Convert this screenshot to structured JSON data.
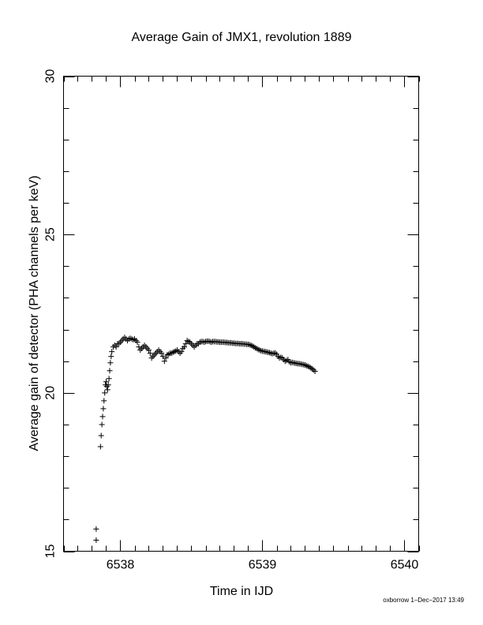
{
  "footer_note": "oxborrow 1–Dec–2017 13:49",
  "chart_data": {
    "type": "scatter",
    "title": "Average Gain of JMX1, revolution 1889",
    "xlabel": "Time in IJD",
    "ylabel": "Average gain of detector (PHA channels per keV)",
    "xlim": [
      6537.6,
      6540.1
    ],
    "ylim": [
      15,
      30
    ],
    "xticks": [
      6538,
      6539,
      6540
    ],
    "yticks": [
      15,
      20,
      25,
      30
    ],
    "x_minor_step": 0.1,
    "y_minor_step": 1,
    "grid": false,
    "marker": "+",
    "series": [
      {
        "points": [
          [
            6537.83,
            15.35
          ],
          [
            6537.83,
            15.7
          ],
          [
            6537.86,
            18.3
          ],
          [
            6537.865,
            18.65
          ],
          [
            6537.87,
            19.0
          ],
          [
            6537.875,
            19.25
          ],
          [
            6537.88,
            19.5
          ],
          [
            6537.885,
            19.75
          ],
          [
            6537.89,
            20.0
          ],
          [
            6537.895,
            20.25
          ],
          [
            6537.9,
            20.35
          ],
          [
            6537.905,
            20.2
          ],
          [
            6537.91,
            20.1
          ],
          [
            6537.915,
            20.25
          ],
          [
            6537.92,
            20.45
          ],
          [
            6537.925,
            20.7
          ],
          [
            6537.93,
            20.95
          ],
          [
            6537.935,
            21.15
          ],
          [
            6537.94,
            21.3
          ],
          [
            6537.95,
            21.45
          ],
          [
            6537.96,
            21.5
          ],
          [
            6537.97,
            21.45
          ],
          [
            6537.98,
            21.55
          ],
          [
            6537.99,
            21.55
          ],
          [
            6538.0,
            21.6
          ],
          [
            6538.01,
            21.65
          ],
          [
            6538.02,
            21.7
          ],
          [
            6538.03,
            21.75
          ],
          [
            6538.04,
            21.7
          ],
          [
            6538.05,
            21.65
          ],
          [
            6538.06,
            21.7
          ],
          [
            6538.07,
            21.72
          ],
          [
            6538.08,
            21.7
          ],
          [
            6538.09,
            21.68
          ],
          [
            6538.1,
            21.7
          ],
          [
            6538.11,
            21.65
          ],
          [
            6538.12,
            21.6
          ],
          [
            6538.13,
            21.45
          ],
          [
            6538.14,
            21.35
          ],
          [
            6538.15,
            21.4
          ],
          [
            6538.16,
            21.45
          ],
          [
            6538.17,
            21.5
          ],
          [
            6538.18,
            21.45
          ],
          [
            6538.19,
            21.4
          ],
          [
            6538.2,
            21.35
          ],
          [
            6538.21,
            21.25
          ],
          [
            6538.22,
            21.1
          ],
          [
            6538.23,
            21.15
          ],
          [
            6538.24,
            21.2
          ],
          [
            6538.25,
            21.25
          ],
          [
            6538.26,
            21.3
          ],
          [
            6538.27,
            21.35
          ],
          [
            6538.28,
            21.3
          ],
          [
            6538.29,
            21.25
          ],
          [
            6538.3,
            21.15
          ],
          [
            6538.31,
            21.0
          ],
          [
            6538.32,
            21.1
          ],
          [
            6538.33,
            21.2
          ],
          [
            6538.34,
            21.22
          ],
          [
            6538.35,
            21.25
          ],
          [
            6538.36,
            21.25
          ],
          [
            6538.37,
            21.28
          ],
          [
            6538.38,
            21.3
          ],
          [
            6538.39,
            21.32
          ],
          [
            6538.4,
            21.35
          ],
          [
            6538.41,
            21.3
          ],
          [
            6538.42,
            21.25
          ],
          [
            6538.43,
            21.3
          ],
          [
            6538.44,
            21.4
          ],
          [
            6538.45,
            21.45
          ],
          [
            6538.46,
            21.55
          ],
          [
            6538.47,
            21.65
          ],
          [
            6538.48,
            21.62
          ],
          [
            6538.49,
            21.6
          ],
          [
            6538.5,
            21.55
          ],
          [
            6538.51,
            21.5
          ],
          [
            6538.52,
            21.45
          ],
          [
            6538.53,
            21.5
          ],
          [
            6538.54,
            21.55
          ],
          [
            6538.55,
            21.55
          ],
          [
            6538.56,
            21.6
          ],
          [
            6538.57,
            21.62
          ],
          [
            6538.58,
            21.62
          ],
          [
            6538.59,
            21.6
          ],
          [
            6538.6,
            21.62
          ],
          [
            6538.61,
            21.63
          ],
          [
            6538.62,
            21.63
          ],
          [
            6538.63,
            21.62
          ],
          [
            6538.64,
            21.6
          ],
          [
            6538.65,
            21.62
          ],
          [
            6538.66,
            21.62
          ],
          [
            6538.67,
            21.62
          ],
          [
            6538.68,
            21.61
          ],
          [
            6538.69,
            21.61
          ],
          [
            6538.7,
            21.6
          ],
          [
            6538.71,
            21.6
          ],
          [
            6538.72,
            21.6
          ],
          [
            6538.73,
            21.6
          ],
          [
            6538.74,
            21.59
          ],
          [
            6538.75,
            21.59
          ],
          [
            6538.76,
            21.58
          ],
          [
            6538.77,
            21.58
          ],
          [
            6538.78,
            21.58
          ],
          [
            6538.79,
            21.57
          ],
          [
            6538.8,
            21.57
          ],
          [
            6538.81,
            21.56
          ],
          [
            6538.82,
            21.56
          ],
          [
            6538.83,
            21.56
          ],
          [
            6538.84,
            21.55
          ],
          [
            6538.85,
            21.55
          ],
          [
            6538.86,
            21.55
          ],
          [
            6538.87,
            21.54
          ],
          [
            6538.88,
            21.54
          ],
          [
            6538.89,
            21.53
          ],
          [
            6538.9,
            21.53
          ],
          [
            6538.91,
            21.52
          ],
          [
            6538.92,
            21.5
          ],
          [
            6538.93,
            21.48
          ],
          [
            6538.94,
            21.45
          ],
          [
            6538.95,
            21.42
          ],
          [
            6538.96,
            21.4
          ],
          [
            6538.97,
            21.37
          ],
          [
            6538.98,
            21.35
          ],
          [
            6538.99,
            21.33
          ],
          [
            6539.0,
            21.32
          ],
          [
            6539.01,
            21.31
          ],
          [
            6539.02,
            21.3
          ],
          [
            6539.03,
            21.29
          ],
          [
            6539.04,
            21.28
          ],
          [
            6539.05,
            21.27
          ],
          [
            6539.06,
            21.25
          ],
          [
            6539.07,
            21.24
          ],
          [
            6539.08,
            21.25
          ],
          [
            6539.09,
            21.26
          ],
          [
            6539.1,
            21.22
          ],
          [
            6539.11,
            21.15
          ],
          [
            6539.12,
            21.1
          ],
          [
            6539.13,
            21.12
          ],
          [
            6539.14,
            21.1
          ],
          [
            6539.15,
            21.05
          ],
          [
            6539.16,
            21.0
          ],
          [
            6539.17,
            21.02
          ],
          [
            6539.18,
            21.05
          ],
          [
            6539.19,
            20.98
          ],
          [
            6539.2,
            20.95
          ],
          [
            6539.21,
            20.96
          ],
          [
            6539.22,
            20.95
          ],
          [
            6539.23,
            20.94
          ],
          [
            6539.24,
            20.93
          ],
          [
            6539.25,
            20.92
          ],
          [
            6539.26,
            20.92
          ],
          [
            6539.27,
            20.91
          ],
          [
            6539.28,
            20.9
          ],
          [
            6539.29,
            20.89
          ],
          [
            6539.3,
            20.88
          ],
          [
            6539.31,
            20.86
          ],
          [
            6539.32,
            20.84
          ],
          [
            6539.33,
            20.82
          ],
          [
            6539.34,
            20.79
          ],
          [
            6539.35,
            20.76
          ],
          [
            6539.36,
            20.72
          ],
          [
            6539.37,
            20.68
          ]
        ]
      }
    ]
  }
}
